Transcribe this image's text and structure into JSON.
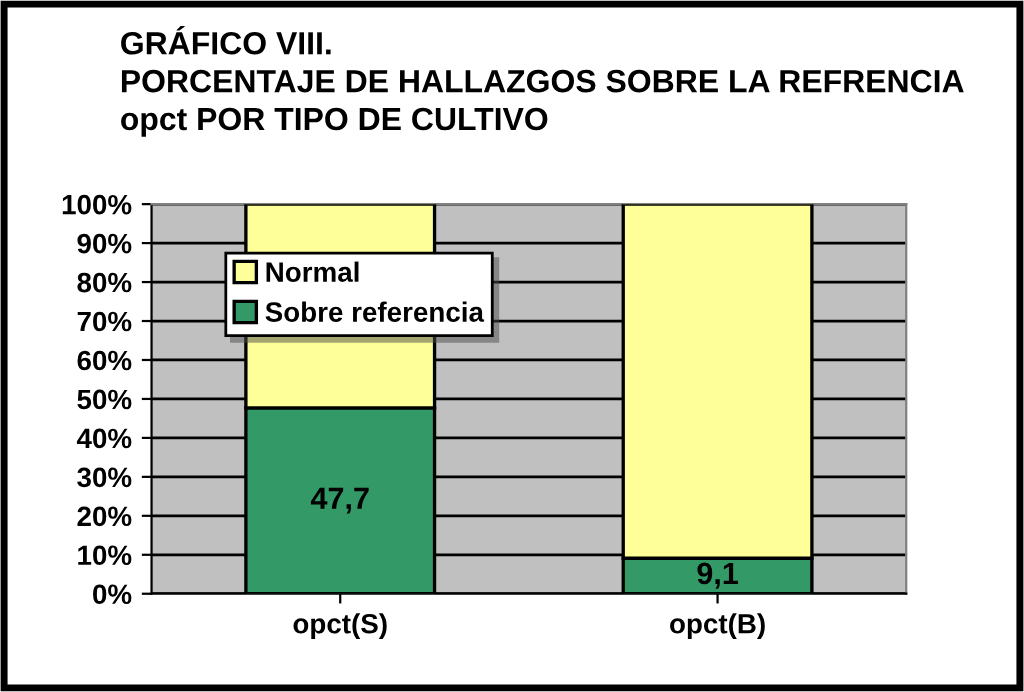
{
  "chart_data": {
    "type": "bar",
    "title": "GRÁFICO VIII.\nPORCENTAJE DE HALLAZGOS SOBRE LA REFRENCIA\nopct POR TIPO DE CULTIVO",
    "categories": [
      "opct(S)",
      "opct(B)"
    ],
    "stacked": true,
    "series": [
      {
        "name": "Sobre referencia",
        "color": "#339966",
        "values": [
          47.7,
          9.1
        ],
        "value_labels": [
          "47,7",
          "9,1"
        ]
      },
      {
        "name": "Normal",
        "color": "#ffff99",
        "values": [
          52.3,
          90.9
        ]
      }
    ],
    "ylim": [
      0,
      100
    ],
    "yticks": [
      {
        "value": 0,
        "label": "0%"
      },
      {
        "value": 10,
        "label": "10%"
      },
      {
        "value": 20,
        "label": "20%"
      },
      {
        "value": 30,
        "label": "30%"
      },
      {
        "value": 40,
        "label": "40%"
      },
      {
        "value": 50,
        "label": "50%"
      },
      {
        "value": 60,
        "label": "60%"
      },
      {
        "value": 70,
        "label": "70%"
      },
      {
        "value": 80,
        "label": "80%"
      },
      {
        "value": 90,
        "label": "90%"
      },
      {
        "value": 100,
        "label": "100%"
      }
    ],
    "grid": "y",
    "legend": "top left"
  }
}
